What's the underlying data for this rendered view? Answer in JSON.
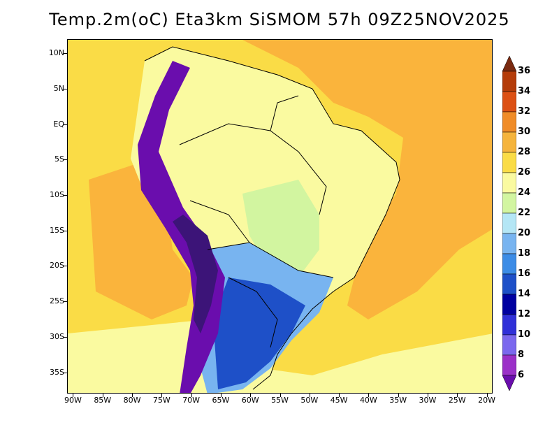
{
  "title": "Temp.2m(oC) Eta3km SiSMOM 57h 09Z25NOV2025",
  "lat_axis": {
    "labels": [
      "10N",
      "5N",
      "EQ",
      "5S",
      "10S",
      "15S",
      "20S",
      "25S",
      "30S",
      "35S"
    ],
    "values": [
      10,
      5,
      0,
      -5,
      -10,
      -15,
      -20,
      -25,
      -30,
      -35
    ],
    "range": [
      -38,
      12
    ]
  },
  "lon_axis": {
    "labels": [
      "90W",
      "85W",
      "80W",
      "75W",
      "70W",
      "65W",
      "60W",
      "55W",
      "50W",
      "45W",
      "40W",
      "35W",
      "30W",
      "25W",
      "20W"
    ],
    "values": [
      -90,
      -85,
      -80,
      -75,
      -70,
      -65,
      -60,
      -55,
      -50,
      -45,
      -40,
      -35,
      -30,
      -25,
      -20
    ],
    "range": [
      -91,
      -19
    ]
  },
  "colorbar": {
    "labels": [
      "6",
      "8",
      "10",
      "12",
      "14",
      "16",
      "18",
      "20",
      "22",
      "24",
      "26",
      "28",
      "30",
      "32",
      "34",
      "36"
    ],
    "levels": [
      6,
      8,
      10,
      12,
      14,
      16,
      18,
      20,
      22,
      24,
      26,
      28,
      30,
      32,
      34,
      36
    ],
    "colors": [
      "#6a0dad",
      "#9b30c8",
      "#7b68ee",
      "#3030d8",
      "#0000a0",
      "#1e50c8",
      "#3c8ce6",
      "#78b4f0",
      "#b4e6f5",
      "#d2f5a0",
      "#fafaa0",
      "#fadc46",
      "#f5b43c",
      "#f08c28",
      "#dc5014",
      "#b43c0a",
      "#7a2a10"
    ]
  },
  "field_colors": {
    "ocean_warm": "#fab43c",
    "ocean_mid": "#fadc46",
    "ocean_cool": "#fafaa0",
    "land_hot": "#fadc46",
    "land_warm": "#fafaa0",
    "land_mild": "#d2f5a0",
    "land_cool": "#78b4f0",
    "land_cold": "#1e50c8",
    "andes_cold": "#3c1478",
    "andes_edge": "#6a0dad"
  }
}
